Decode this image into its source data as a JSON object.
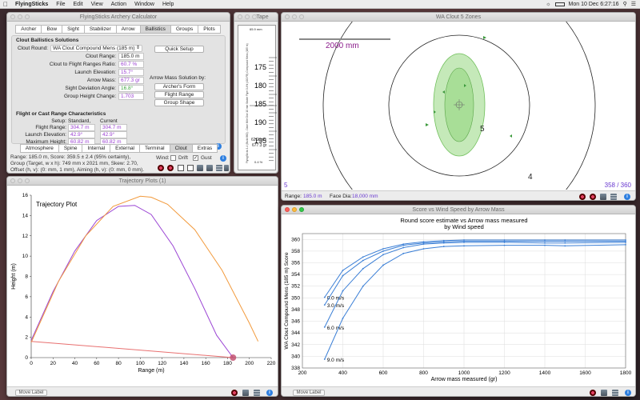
{
  "menubar": {
    "apple": "",
    "app": "FlyingSticks",
    "items": [
      "File",
      "Edit",
      "View",
      "Action",
      "Window",
      "Help"
    ],
    "clock": "Mon 10 Dec 6:27:16"
  },
  "calc": {
    "title": "FlyingSticks Archery Calculator",
    "tabs": [
      "Archer",
      "Bow",
      "Sight",
      "Stabilizer",
      "Arrow",
      "Ballistics",
      "Groups",
      "Plots"
    ],
    "selected_tab": "Ballistics",
    "clout_heading": "Clout Ballistics Solutions",
    "clout_round_label": "Clout Round:",
    "clout_round_value": "WA Clout Compound Mens (185 m)",
    "quick_setup": "Quick Setup",
    "rows": [
      {
        "label": "Clout Range:",
        "value": "185.0 m",
        "color": "#222"
      },
      {
        "label": "Clout to Flight Ranges Ratio:",
        "value": "60.7 %",
        "color": "#9b3fd2"
      },
      {
        "label": "Launch Elevation:",
        "value": "15.7°",
        "color": "#9b3fd2"
      },
      {
        "label": "Arrow Mass:",
        "value": "677.3 gr",
        "color": "#9b3fd2"
      },
      {
        "label": "Sight Deviation Angle:",
        "value": "16.8°",
        "color": "#3ca63c"
      },
      {
        "label": "Group Height Change:",
        "value": "1.703",
        "color": "#9b3fd2"
      }
    ],
    "mass_solution_label": "Arrow Mass Solution by:",
    "mass_buttons": [
      "Archer's Form",
      "Flight Range",
      "Group Shape"
    ],
    "flight_heading": "Flight or Cast Range Characteristics",
    "setup_label": "Setup:",
    "col_headers": [
      "Standard,",
      "Current"
    ],
    "flight_rows": [
      {
        "label": "Flight Range:",
        "std": "304.7 m",
        "cur": "304.7 m"
      },
      {
        "label": "Launch Elevation:",
        "std": "42.9°",
        "cur": "42.9°"
      },
      {
        "label": "Maximum Height:",
        "std": "60.82 m",
        "cur": "60.82 m"
      },
      {
        "label": "Flight Time:",
        "std": "8.055 s",
        "cur": "8.055 s"
      }
    ],
    "subtabs": [
      "Atmosphere",
      "Spine",
      "Internal",
      "External",
      "Terminal",
      "Clout",
      "Extras"
    ],
    "selected_subtab": "Clout",
    "status1": "Range: 185.0 m, Score: 359.5  ± 2.4 (95% certainty),",
    "status2": "Group (Target, w x h): 749 mm x 2021 mm, Skew: 2.70,",
    "status3": "Offset (h, v): (0: mm, 1 mm), Aiming (h, v): (0: mm, 0 mm).",
    "wind_label": "Wind:",
    "drift_label": "Drift",
    "gust_label": "Gust",
    "gust_checked": true
  },
  "tape": {
    "title": "Tape",
    "ticks": [
      "175",
      "180",
      "185",
      "190",
      "195"
    ],
    "top_label": "65.9 mm",
    "reading1": "62.2 m/s",
    "reading2": "677.3 gr",
    "bottom": "0.4 %",
    "side_text": "FlyingSticks 1.4 (Build 860) - Dave Mile One 10 mm Stable Flyer 0.4% (400 FB) Compound Mens (185 m)"
  },
  "clout": {
    "title": "WA Clout 5 Zones",
    "scale_label": "2000 mm",
    "zone5": "5",
    "zone4": "4",
    "corner_left": "5",
    "score": "358 / 360",
    "range_label": "Range:",
    "range_value": "185.0 m",
    "face_label": "Face Dia:",
    "face_value": "18,000 mm"
  },
  "traj": {
    "title": "Trajectory Plots (1)",
    "plot_title": "Trajectory Plot",
    "ylabel": "Height (m)",
    "xlabel": "Range (m)",
    "move_label": "Move Label",
    "xticks": [
      "0",
      "20",
      "40",
      "60",
      "80",
      "100",
      "120",
      "140",
      "160",
      "180",
      "200",
      "220"
    ],
    "yticks": [
      "0",
      "2",
      "4",
      "6",
      "8",
      "10",
      "12",
      "14",
      "16"
    ]
  },
  "score": {
    "title": "Score vs Wind Speed by Arrow Mass",
    "move_label": "Move Label"
  },
  "chart_data": [
    {
      "type": "line",
      "title": "Trajectory Plot",
      "xlabel": "Range (m)",
      "ylabel": "Height (m)",
      "xlim": [
        0,
        220
      ],
      "ylim": [
        0,
        16
      ],
      "series": [
        {
          "color": "#9b45d4",
          "x": [
            0,
            20,
            40,
            60,
            80,
            95,
            110,
            130,
            150,
            170,
            185
          ],
          "y": [
            1.7,
            6.5,
            10.5,
            13.5,
            14.9,
            15.0,
            14.1,
            11.0,
            6.8,
            2.2,
            0
          ]
        },
        {
          "color": "#f29a3c",
          "x": [
            0,
            25,
            50,
            75,
            100,
            110,
            125,
            150,
            175,
            200,
            208
          ],
          "y": [
            1.5,
            7.5,
            12.0,
            14.9,
            15.9,
            15.8,
            15.1,
            12.6,
            8.6,
            3.4,
            1.6
          ]
        },
        {
          "color": "#e87070",
          "x": [
            0,
            185
          ],
          "y": [
            1.6,
            0
          ]
        }
      ],
      "grid": false
    },
    {
      "type": "line",
      "title": "Round score estimate vs Arrow mass measured\nby Wind speed",
      "xlabel": "Arrow mass measured (gr)",
      "ylabel": "WA Clout Compound Mens (185 m) Score",
      "xlim": [
        200,
        1800
      ],
      "ylim": [
        338,
        361
      ],
      "xticks": [
        200,
        400,
        600,
        800,
        1000,
        1200,
        1400,
        1600,
        1800
      ],
      "yticks": [
        338,
        340,
        342,
        344,
        346,
        348,
        350,
        352,
        354,
        356,
        358,
        360
      ],
      "series": [
        {
          "name": "0.0 m/s",
          "x": [
            310,
            400,
            500,
            600,
            700,
            800,
            900,
            1000,
            1200,
            1400,
            1500,
            1800
          ],
          "y": [
            350.1,
            354.7,
            357.0,
            358.4,
            359.2,
            359.6,
            359.8,
            359.9,
            359.9,
            359.9,
            359.9,
            359.9
          ]
        },
        {
          "name": "3.0 m/s",
          "x": [
            310,
            400,
            500,
            600,
            700,
            800,
            900,
            1000,
            1200,
            1400,
            1500,
            1800
          ],
          "y": [
            348.8,
            353.8,
            356.4,
            358.0,
            359.0,
            359.4,
            359.6,
            359.7,
            359.7,
            359.7,
            359.7,
            359.7
          ]
        },
        {
          "name": "6.0 m/s",
          "x": [
            310,
            400,
            500,
            600,
            700,
            800,
            900,
            1000,
            1200,
            1400,
            1500,
            1800
          ],
          "y": [
            345.0,
            351.2,
            355.0,
            357.4,
            358.6,
            359.2,
            359.4,
            359.5,
            359.5,
            359.4,
            359.4,
            359.5
          ]
        },
        {
          "name": "9.0 m/s",
          "x": [
            310,
            400,
            500,
            600,
            700,
            800,
            900,
            1000,
            1200,
            1400,
            1500,
            1800
          ],
          "y": [
            339.5,
            346.5,
            352.0,
            355.6,
            357.6,
            358.4,
            358.8,
            358.9,
            359.0,
            359.0,
            358.9,
            359.1
          ]
        }
      ],
      "grid": true,
      "legend": "inline"
    }
  ]
}
